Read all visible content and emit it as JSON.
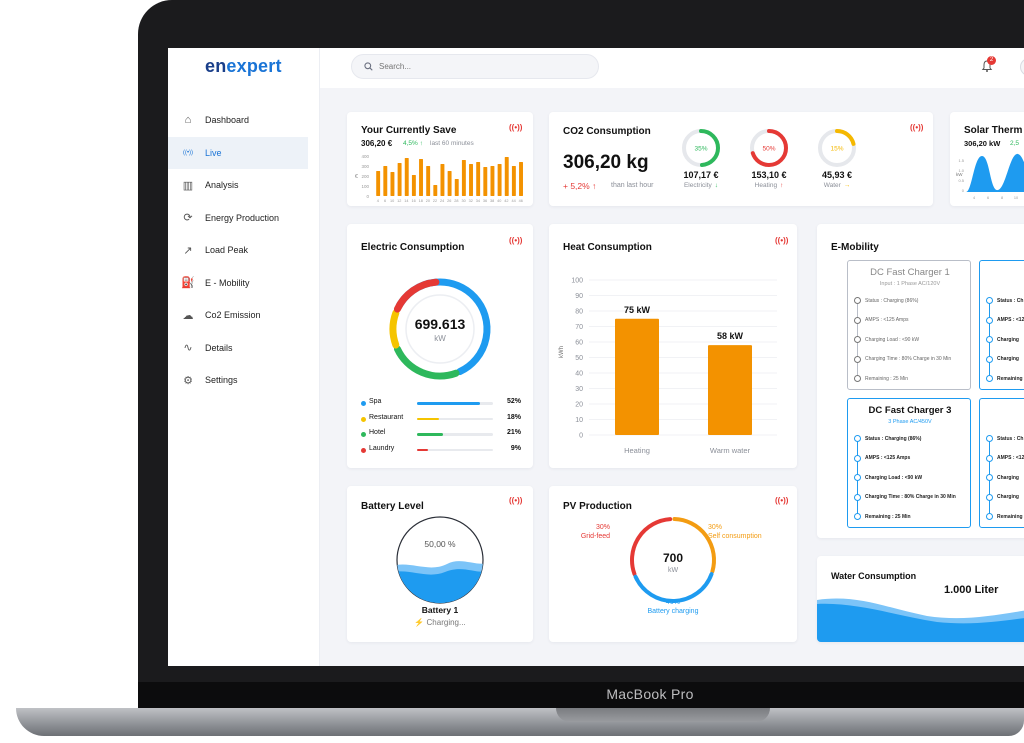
{
  "device": {
    "label": "MacBook Pro"
  },
  "brand": {
    "logo_a": "en",
    "logo_b": "expert"
  },
  "search": {
    "placeholder": "Search..."
  },
  "notifications": {
    "count": "2"
  },
  "sidebar": {
    "items": [
      {
        "label": "Dashboard",
        "icon": "home-icon"
      },
      {
        "label": "Live",
        "icon": "broadcast-icon",
        "active": true
      },
      {
        "label": "Analysis",
        "icon": "bar-chart-icon"
      },
      {
        "label": "Energy Production",
        "icon": "energy-cycle-icon"
      },
      {
        "label": "Load Peak",
        "icon": "line-chart-icon"
      },
      {
        "label": "E - Mobility",
        "icon": "ev-charger-icon"
      },
      {
        "label": "Co2 Emission",
        "icon": "cloud-co2-icon"
      },
      {
        "label": "Details",
        "icon": "route-icon"
      },
      {
        "label": "Settings",
        "icon": "gear-icon"
      }
    ]
  },
  "save": {
    "title": "Your Currently Save",
    "value": "306,20 €",
    "change": "4,5% ↑",
    "period": "last 60 minutes",
    "y_label": "€",
    "y_ticks": [
      "400",
      "300",
      "200",
      "100",
      "0"
    ],
    "x_ticks": [
      "4",
      "6",
      "10",
      "12",
      "14",
      "16",
      "18",
      "20",
      "22",
      "24",
      "26",
      "28",
      "30",
      "32",
      "34",
      "36",
      "38",
      "40",
      "42",
      "44",
      "46"
    ]
  },
  "co2": {
    "title": "CO2 Consumption",
    "value": "306,20 kg",
    "change": "+ 5,2% ↑",
    "period": "than last hour",
    "gauges": [
      {
        "pct": "35%",
        "value": "107,17 €",
        "label": "Electricity",
        "arrow": "↓",
        "color": "#2eb85c",
        "fraction": 0.35
      },
      {
        "pct": "50%",
        "value": "153,10 €",
        "label": "Heating",
        "arrow": "↑",
        "color": "#e53935",
        "fraction": 0.5
      },
      {
        "pct": "15%",
        "value": "45,93 €",
        "label": "Water",
        "arrow": "→",
        "color": "#f5b800",
        "fraction": 0.15
      }
    ]
  },
  "solar": {
    "title": "Solar Therm",
    "value": "306,20 kW",
    "change": "2,5",
    "y_label": "kW",
    "y_ticks": [
      "1.5",
      "1.0",
      "0.5",
      "0"
    ],
    "x_ticks": [
      "4",
      "6",
      "8",
      "10",
      "12"
    ]
  },
  "electric": {
    "title": "Electric Consumption",
    "value": "699.613",
    "unit": "kW",
    "rows": [
      {
        "label": "Spa",
        "pct": "52%",
        "fraction": 0.52,
        "color": "#1e9bf0"
      },
      {
        "label": "Restaurant",
        "pct": "18%",
        "fraction": 0.18,
        "color": "#f5c400"
      },
      {
        "label": "Hotel",
        "pct": "21%",
        "fraction": 0.21,
        "color": "#2eb85c"
      },
      {
        "label": "Laundry",
        "pct": "9%",
        "fraction": 0.09,
        "color": "#e53935"
      }
    ]
  },
  "chart_data": [
    {
      "type": "bar",
      "title": "Heat Consumption",
      "categories": [
        "Heating",
        "Warm water"
      ],
      "values": [
        75,
        58
      ],
      "data_labels": [
        "75 kW",
        "58 kW"
      ],
      "ylabel": "kWh",
      "ylim": [
        0,
        100
      ],
      "y_ticks": [
        "100",
        "90",
        "80",
        "70",
        "60",
        "50",
        "40",
        "30",
        "20",
        "10",
        "0"
      ],
      "grid": true,
      "color": "#f39200"
    },
    {
      "type": "bar",
      "title": "Your Currently Save",
      "categories": [
        "4",
        "6",
        "10",
        "12",
        "14",
        "16",
        "18",
        "20",
        "22",
        "24",
        "26",
        "28",
        "30",
        "32",
        "34",
        "36",
        "38",
        "40",
        "42",
        "44",
        "46"
      ],
      "values": [
        250,
        300,
        240,
        330,
        380,
        210,
        370,
        300,
        110,
        320,
        250,
        170,
        360,
        320,
        340,
        290,
        300,
        320,
        390,
        300,
        340
      ],
      "ylim": [
        0,
        400
      ],
      "color": "#f39200"
    }
  ],
  "emobility": {
    "title": "E-Mobility",
    "chargers": [
      {
        "name": "DC Fast Charger 1",
        "input": "Input : 1 Phase AC/120V",
        "active": false,
        "rows": [
          "Status : Charging (86%)",
          "AMPS : <125 Amps",
          "Charging Load : <90 kW",
          "Charging Time : 80% Charge in 30 Min",
          "Remaining : 25 Min"
        ]
      },
      {
        "name": "DC Fa",
        "input": "1 Phas",
        "active": true,
        "rows": [
          "Status : Ch",
          "AMPS : <12",
          "Charging",
          "Charging",
          "Remaining"
        ]
      },
      {
        "name": "DC Fast Charger 3",
        "input": "3 Phase AC/450V",
        "active": true,
        "rows": [
          "Status : Charging (86%)",
          "AMPS : <125 Amps",
          "Charging Load : <90 kW",
          "Charging Time : 80% Charge in 30 Min",
          "Remaining : 25 Min"
        ]
      },
      {
        "name": "DC Fa",
        "input": "3 P",
        "active": true,
        "rows": [
          "Status : Ch",
          "AMPS : <12",
          "Charging",
          "Charging",
          "Remaining"
        ]
      }
    ]
  },
  "battery": {
    "title": "Battery Level",
    "pct": "50,00 %",
    "level": 0.5,
    "name": "Battery 1",
    "status": "Charging..."
  },
  "pv": {
    "title": "PV Production",
    "value": "700",
    "unit": "kW",
    "segments": [
      {
        "pct": "30%",
        "label": "Grid-feed",
        "color": "#e53935"
      },
      {
        "pct": "30%",
        "label": "Self consumption",
        "color": "#f39c12"
      },
      {
        "pct": "40%",
        "label": "Battery charging",
        "color": "#1e9bf0"
      }
    ]
  },
  "water": {
    "title": "Water Consumption",
    "value": "1.000 Liter"
  }
}
